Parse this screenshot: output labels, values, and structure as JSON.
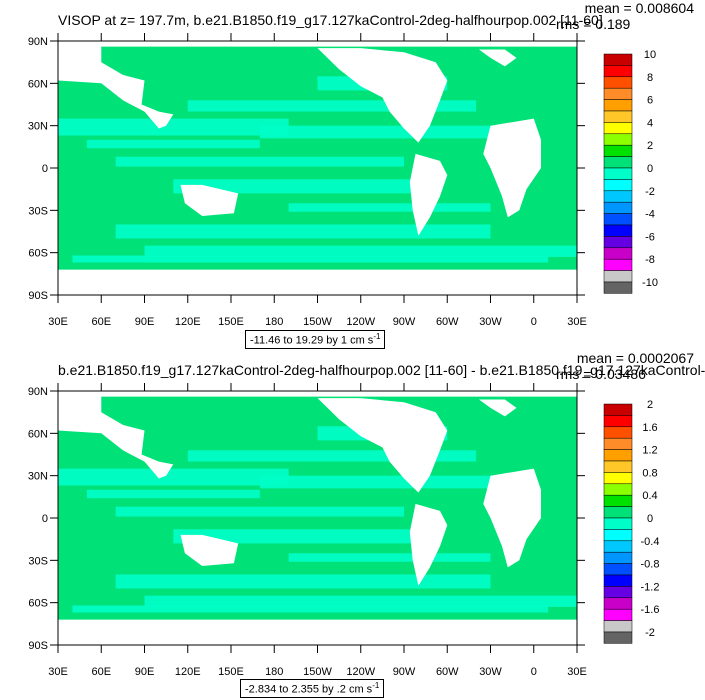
{
  "chart_data": [
    {
      "type": "heatmap",
      "title": "VISOP at z= 197.7m, b.e21.B1850.f19_g17.127kaControl-2deg-halfhourpop.002 [11-60]",
      "mean_text": "mean = 0.008604",
      "rms_text": "rms = 0.189",
      "range_text": "-11.46 to 19.29 by 1 cm s",
      "range_sup": "-1",
      "x_ticks": [
        "30E",
        "60E",
        "90E",
        "120E",
        "150E",
        "180",
        "150W",
        "120W",
        "90W",
        "60W",
        "30W",
        "0",
        "30E"
      ],
      "y_ticks": [
        "90N",
        "60N",
        "30N",
        "0",
        "30S",
        "60S",
        "90S"
      ],
      "colorbar_labels": [
        "10",
        "8",
        "6",
        "4",
        "2",
        "0",
        "-2",
        "-4",
        "-6",
        "-8",
        "-10"
      ],
      "colorbar_colors": [
        "#c80000",
        "#ff0000",
        "#ff5000",
        "#ff8c28",
        "#ffa000",
        "#ffc828",
        "#ffff00",
        "#8cff00",
        "#00e100",
        "#00e178",
        "#00ffc8",
        "#00ffff",
        "#00c8ff",
        "#0096ff",
        "#0050ff",
        "#0000ff",
        "#6400e1",
        "#c800c8",
        "#ff00ff",
        "#c8c8c8",
        "#646464"
      ]
    },
    {
      "type": "heatmap",
      "title": "b.e21.B1850.f19_g17.127kaControl-2deg-halfhourpop.002 [11-60] - b.e21.B1850.f19_g17.127kaControl-",
      "mean_text": "mean = 0.0002067",
      "rms_text": "rms = 0.03486",
      "range_text": "-2.834 to 2.355 by .2 cm s",
      "range_sup": "-1",
      "x_ticks": [
        "30E",
        "60E",
        "90E",
        "120E",
        "150E",
        "180",
        "150W",
        "120W",
        "90W",
        "60W",
        "30W",
        "0",
        "30E"
      ],
      "y_ticks": [
        "90N",
        "60N",
        "30N",
        "0",
        "30S",
        "60S",
        "90S"
      ],
      "colorbar_labels": [
        "2",
        "1.6",
        "1.2",
        "0.8",
        "0.4",
        "0",
        "-0.4",
        "-0.8",
        "-1.2",
        "-1.6",
        "-2"
      ],
      "colorbar_colors": [
        "#c80000",
        "#ff0000",
        "#ff5000",
        "#ff8c28",
        "#ffa000",
        "#ffc828",
        "#ffff00",
        "#8cff00",
        "#00e100",
        "#00e178",
        "#00ffc8",
        "#00ffff",
        "#00c8ff",
        "#0096ff",
        "#0050ff",
        "#0000ff",
        "#6400e1",
        "#c800c8",
        "#ff00ff",
        "#c8c8c8",
        "#646464"
      ]
    }
  ],
  "colors": {
    "ocean_main": "#00e178",
    "ocean_alt": "#00ffc8",
    "land": "#ffffff"
  }
}
